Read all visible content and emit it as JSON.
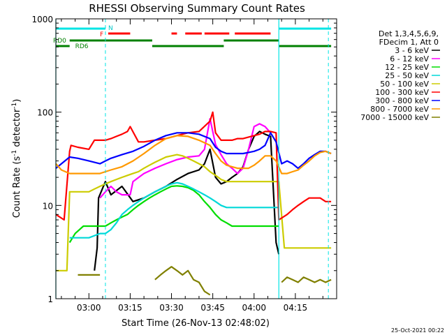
{
  "chart_data": {
    "type": "line",
    "title": "RHESSI Observing Summary Count Rates",
    "xlabel": "Start Time (26-Nov-13 02:48:02)",
    "ylabel_main": "Count Rate (s",
    "ylabel_sup": "-1",
    "ylabel_tail": " detector",
    "ylabel_close": ")",
    "yscale": "log",
    "ylim": [
      1,
      1000
    ],
    "xlim_minutes": [
      0,
      102
    ],
    "x_unit": "minutes after 02:48:02",
    "y_ticks": [
      "1",
      "10",
      "100",
      "1000"
    ],
    "x_ticks": [
      {
        "label": "03:00",
        "minute": 12
      },
      {
        "label": "03:15",
        "minute": 27
      },
      {
        "label": "03:30",
        "minute": 42
      },
      {
        "label": "03:45",
        "minute": 57
      },
      {
        "label": "04:00",
        "minute": 72
      },
      {
        "label": "04:15",
        "minute": 87
      }
    ],
    "legend_header": [
      "Det 1,3,4,5,6,9,",
      "FDecim 1, Att 0"
    ],
    "legend_position": "right",
    "timestamp": "25-Oct-2021 00:22",
    "flags": {
      "N_label": "N",
      "F_label": "F",
      "RD0_label": "RD0",
      "RD6_label": "RD6",
      "N": [
        {
          "start": 0,
          "end": 18,
          "color": "#00e5e5"
        },
        {
          "start": 81,
          "end": 100,
          "color": "#00e5e5"
        }
      ],
      "F": [
        {
          "start": 19,
          "end": 27
        },
        {
          "start": 42,
          "end": 44
        },
        {
          "start": 47,
          "end": 53
        },
        {
          "start": 54,
          "end": 63
        },
        {
          "start": 65,
          "end": 78
        }
      ],
      "RD0": [
        {
          "start": 5,
          "end": 35
        },
        {
          "start": 61,
          "end": 81
        }
      ],
      "RD6": [
        {
          "start": 0,
          "end": 5
        },
        {
          "start": 35,
          "end": 61
        },
        {
          "start": 81,
          "end": 100
        }
      ]
    },
    "night_boundaries_minutes": [
      0,
      81
    ],
    "dashed_lines_minutes": [
      18,
      99
    ],
    "series": [
      {
        "name": "3 - 6 keV",
        "color": "#000000",
        "x": [
          0,
          5,
          5.5,
          14,
          15,
          15.5,
          18,
          20,
          24,
          28,
          32,
          36,
          40,
          44,
          48,
          52,
          54,
          56,
          58,
          60,
          62,
          64,
          66,
          68,
          70,
          72,
          74,
          76,
          78,
          80,
          81,
          81.5,
          84,
          86,
          88,
          92,
          96,
          100
        ],
        "values": [
          null,
          null,
          null,
          2.0,
          3.5,
          12,
          18,
          13,
          16,
          11,
          12,
          14,
          16,
          19,
          22,
          24,
          28,
          40,
          20,
          17,
          18,
          20,
          22,
          26,
          40,
          55,
          62,
          58,
          55,
          4,
          3,
          null,
          null,
          null,
          null,
          null,
          null,
          null
        ]
      },
      {
        "name": "6 - 12 keV",
        "color": "#ff00ff",
        "x": [
          0,
          5,
          5.5,
          14,
          16,
          18,
          20,
          22,
          24,
          27,
          28,
          32,
          36,
          40,
          44,
          48,
          52,
          54,
          56,
          58,
          60,
          62,
          64,
          66,
          68,
          70,
          72,
          74,
          76,
          78,
          80,
          80.5
        ],
        "values": [
          null,
          null,
          null,
          null,
          12,
          14,
          16,
          14,
          13,
          13,
          18,
          22,
          25,
          28,
          31,
          33,
          34,
          40,
          85,
          45,
          35,
          28,
          25,
          22,
          25,
          40,
          70,
          75,
          70,
          60,
          null,
          null
        ]
      },
      {
        "name": "12 - 25 keV",
        "color": "#00dd00",
        "x": [
          5,
          7,
          10,
          14,
          18,
          20,
          22,
          24,
          26,
          28,
          30,
          32,
          34,
          36,
          38,
          40,
          42,
          44,
          46,
          48,
          50,
          52,
          54,
          56,
          58,
          60,
          62,
          64,
          66,
          68,
          70,
          72,
          74,
          76,
          78,
          80,
          81
        ],
        "values": [
          4,
          5,
          6,
          6,
          6,
          6.5,
          7,
          7.5,
          8,
          9,
          10,
          11,
          12,
          13,
          14,
          15,
          16,
          16.2,
          16,
          15.5,
          14.5,
          13,
          11,
          9.5,
          8,
          7,
          6.5,
          6,
          6,
          6,
          6,
          6,
          6,
          6,
          6,
          6,
          6
        ]
      },
      {
        "name": "25 - 50 keV",
        "color": "#00d8d8",
        "x": [
          5,
          8,
          12,
          16,
          18,
          20,
          22,
          24,
          26,
          28,
          30,
          32,
          34,
          36,
          38,
          40,
          42,
          44,
          46,
          48,
          50,
          52,
          54,
          56,
          58,
          60,
          62,
          64,
          66,
          68,
          70,
          72,
          74,
          76,
          78,
          80,
          81
        ],
        "values": [
          4.5,
          4.5,
          4.5,
          5,
          5,
          5.5,
          6.5,
          8,
          9,
          10,
          11,
          12,
          13,
          14,
          15,
          16,
          17,
          17.5,
          17,
          16,
          15,
          14,
          13,
          12,
          11,
          10,
          9.5,
          9.5,
          9.5,
          9.5,
          9.5,
          9.5,
          9.5,
          9.5,
          9.5,
          9.5,
          9.5
        ]
      },
      {
        "name": "50 - 100 keV",
        "color": "#cccc00",
        "x": [
          0,
          2,
          4,
          5,
          8,
          12,
          14,
          16,
          18,
          20,
          22,
          24,
          26,
          28,
          30,
          32,
          34,
          36,
          38,
          40,
          42,
          44,
          46,
          48,
          50,
          52,
          54,
          56,
          58,
          60,
          62,
          64,
          66,
          68,
          70,
          72,
          74,
          76,
          78,
          80,
          81,
          83,
          86,
          90,
          94,
          98,
          100
        ],
        "values": [
          2,
          2,
          2,
          14,
          14,
          14,
          15,
          16,
          17,
          18,
          19,
          20,
          21,
          22,
          23,
          25,
          27,
          29,
          31,
          33,
          34,
          35,
          34,
          32,
          30,
          28,
          26,
          23,
          21,
          19,
          18,
          18,
          18,
          18,
          18,
          18,
          18,
          18,
          18,
          18,
          18,
          3.5,
          3.5,
          3.5,
          3.5,
          3.5,
          3.5
        ]
      },
      {
        "name": "100 - 300 keV",
        "color": "#ff0000",
        "x": [
          0,
          3,
          5,
          5.5,
          8,
          12,
          14,
          18,
          20,
          22,
          24,
          26,
          27,
          30,
          32,
          36,
          40,
          44,
          48,
          52,
          56,
          57,
          58,
          60,
          62,
          64,
          66,
          68,
          70,
          72,
          74,
          76,
          78,
          80,
          81,
          84,
          86,
          88,
          90,
          92,
          94,
          96,
          98,
          100
        ],
        "values": [
          8,
          7,
          38,
          44,
          42,
          40,
          50,
          50,
          52,
          55,
          58,
          62,
          70,
          48,
          48,
          50,
          52,
          56,
          60,
          62,
          80,
          100,
          60,
          50,
          50,
          50,
          52,
          52,
          54,
          56,
          58,
          62,
          62,
          60,
          7,
          8,
          9,
          10,
          11,
          12,
          12,
          12,
          11,
          11
        ]
      },
      {
        "name": "300 - 800 keV",
        "color": "#0000ff",
        "x": [
          0,
          5,
          8,
          12,
          16,
          18,
          20,
          24,
          28,
          32,
          36,
          40,
          44,
          48,
          52,
          56,
          58,
          60,
          62,
          64,
          66,
          68,
          70,
          72,
          74,
          76,
          78,
          80,
          82,
          84,
          86,
          88,
          90,
          92,
          94,
          96,
          98,
          100
        ],
        "values": [
          25,
          33,
          32,
          30,
          28,
          30,
          32,
          35,
          38,
          43,
          50,
          56,
          60,
          60,
          58,
          52,
          42,
          38,
          36,
          36,
          36,
          36,
          37,
          38,
          40,
          44,
          60,
          48,
          28,
          30,
          28,
          25,
          28,
          32,
          35,
          38,
          38,
          36
        ]
      },
      {
        "name": "800 - 7000 keV",
        "color": "#ff9900",
        "x": [
          0,
          2,
          5,
          8,
          12,
          16,
          18,
          20,
          24,
          28,
          32,
          36,
          40,
          44,
          48,
          52,
          56,
          58,
          60,
          62,
          64,
          66,
          68,
          70,
          72,
          74,
          76,
          78,
          80,
          82,
          84,
          86,
          88,
          90,
          92,
          94,
          96,
          98,
          100
        ],
        "values": [
          28,
          24,
          22,
          22,
          22,
          22,
          23,
          24,
          26,
          30,
          36,
          44,
          52,
          56,
          55,
          50,
          44,
          36,
          30,
          27,
          26,
          25,
          25,
          25,
          27,
          30,
          34,
          34,
          30,
          22,
          22,
          23,
          24,
          27,
          30,
          34,
          37,
          38,
          36
        ]
      },
      {
        "name": "7000 - 15000 keV",
        "color": "#808000",
        "x": [
          0,
          5,
          8,
          12,
          14,
          16,
          18,
          20,
          24,
          28,
          32,
          36,
          38,
          40,
          42,
          44,
          46,
          48,
          50,
          52,
          54,
          56,
          58,
          60,
          62,
          64,
          66,
          68,
          70,
          72,
          74,
          76,
          78,
          80,
          82,
          84,
          86,
          88,
          90,
          92,
          94,
          96,
          98,
          100
        ],
        "values": [
          null,
          null,
          1.8,
          1.8,
          1.8,
          1.8,
          null,
          null,
          null,
          null,
          null,
          1.6,
          1.8,
          2.0,
          2.2,
          2.0,
          1.8,
          2.0,
          1.6,
          1.5,
          1.2,
          1.1,
          null,
          null,
          null,
          null,
          null,
          null,
          null,
          null,
          null,
          null,
          null,
          null,
          1.5,
          1.7,
          1.6,
          1.5,
          1.7,
          1.6,
          1.5,
          1.6,
          1.5,
          1.6
        ]
      }
    ]
  }
}
